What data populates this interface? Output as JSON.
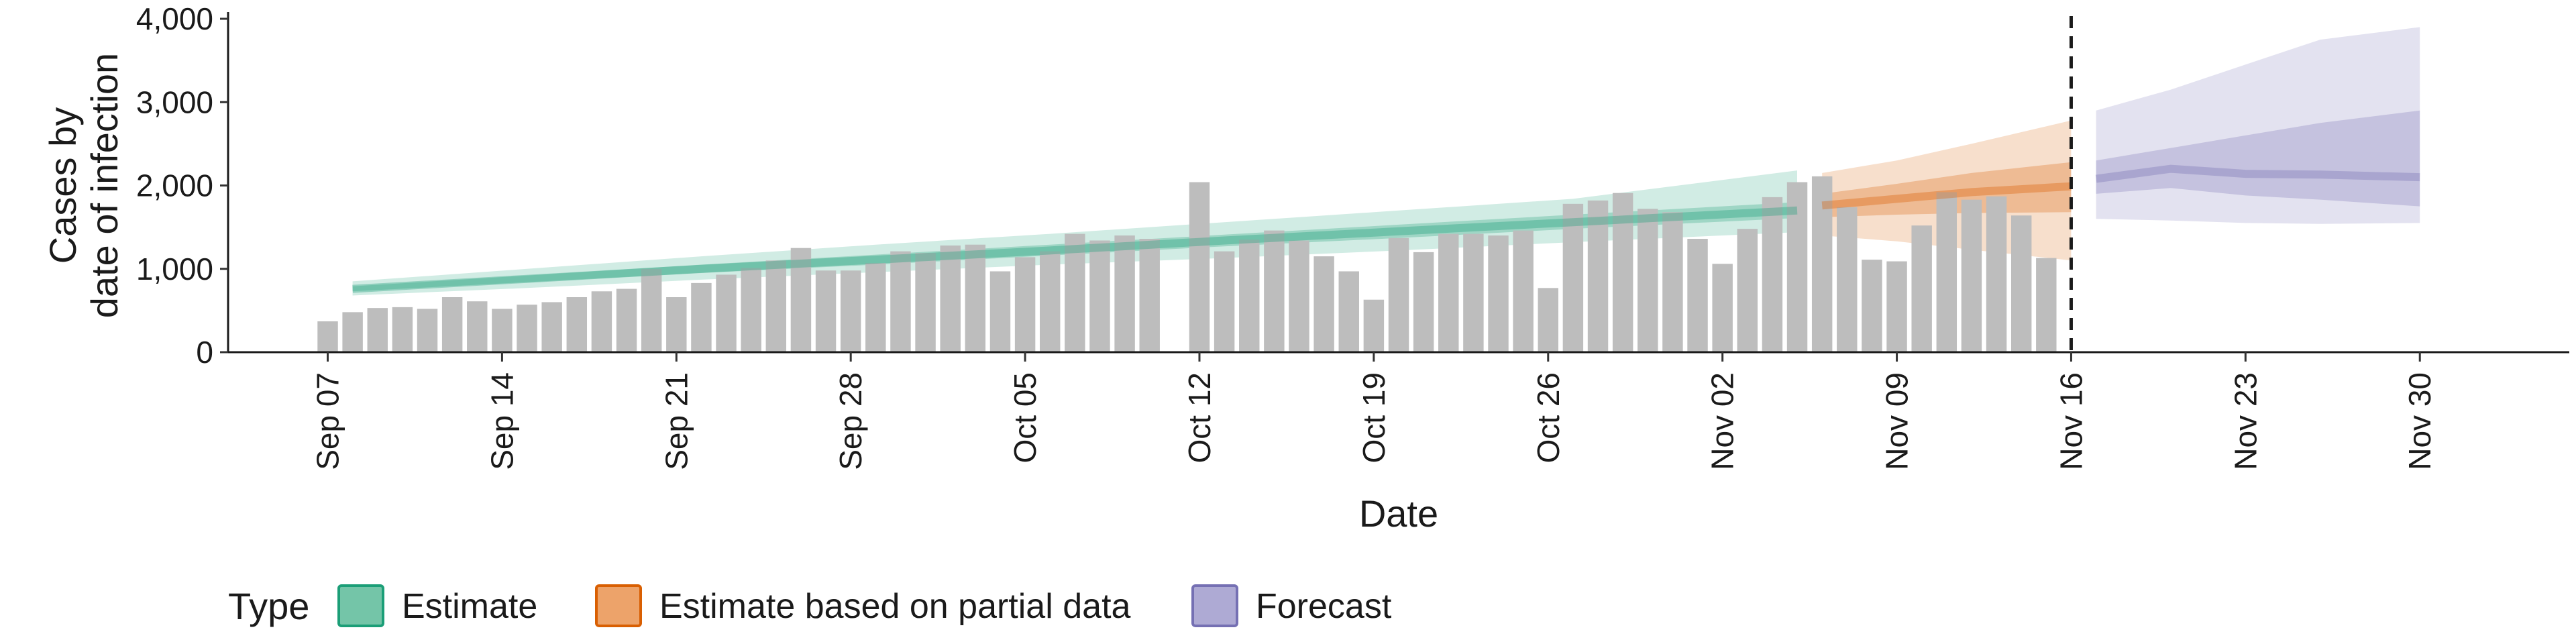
{
  "chart_data": {
    "type": "bar",
    "title": "",
    "xlabel": "Date",
    "ylabel": [
      "Cases by",
      "date of infection"
    ],
    "ylim": [
      0,
      4000
    ],
    "yticks": [
      0,
      1000,
      2000,
      3000,
      4000
    ],
    "ytick_labels": [
      "0",
      "1,000",
      "2,000",
      "3,000",
      "4,000"
    ],
    "xlim": [
      "2020-09-03",
      "2020-12-06"
    ],
    "xticks": [
      "2020-09-07",
      "2020-09-14",
      "2020-09-21",
      "2020-09-28",
      "2020-10-05",
      "2020-10-12",
      "2020-10-19",
      "2020-10-26",
      "2020-11-02",
      "2020-11-09",
      "2020-11-16",
      "2020-11-23",
      "2020-11-30"
    ],
    "xtick_labels": [
      "Sep 07",
      "Sep 14",
      "Sep 21",
      "Sep 28",
      "Oct 05",
      "Oct 12",
      "Oct 19",
      "Oct 26",
      "Nov 02",
      "Nov 09",
      "Nov 16",
      "Nov 23",
      "Nov 30"
    ],
    "grid": false,
    "vline": "2020-11-16",
    "legend": {
      "title": "Type",
      "position": "bottom",
      "entries": [
        {
          "label": "Estimate",
          "fill": "#74c5a8",
          "stroke": "#1b9e77"
        },
        {
          "label": "Estimate based on partial data",
          "fill": "#eda36a",
          "stroke": "#d95f02"
        },
        {
          "label": "Forecast",
          "fill": "#aeaad4",
          "stroke": "#7570b3"
        }
      ]
    },
    "colors": {
      "bar": "#bdbdbd",
      "estimate": "#1b9e77",
      "partial": "#d95f02",
      "forecast": "#7570b3",
      "vline": "#1a1a1a"
    },
    "bars": {
      "start": "2020-09-07",
      "values": [
        370,
        480,
        530,
        540,
        520,
        660,
        610,
        520,
        570,
        600,
        660,
        730,
        760,
        1000,
        660,
        830,
        930,
        1010,
        1100,
        1250,
        980,
        980,
        1070,
        1210,
        1190,
        1280,
        1290,
        970,
        1140,
        1210,
        1420,
        1340,
        1400,
        1360,
        null,
        2040,
        1210,
        1350,
        1460,
        1340,
        1150,
        970,
        630,
        1370,
        1200,
        1420,
        1420,
        1400,
        1460,
        770,
        1780,
        1820,
        1910,
        1720,
        1680,
        1360,
        1060,
        1480,
        1860,
        2040,
        2110,
        1740,
        1110,
        1090,
        1520,
        1920,
        1830,
        1870,
        1640,
        1130
      ]
    },
    "series": [
      {
        "type": "Estimate",
        "x": [
          "2020-09-08",
          "2020-09-15",
          "2020-09-22",
          "2020-09-29",
          "2020-10-06",
          "2020-10-13",
          "2020-10-20",
          "2020-10-27",
          "2020-11-05"
        ],
        "median": [
          760,
          880,
          1000,
          1110,
          1220,
          1340,
          1450,
          1560,
          1700
        ],
        "lower90": [
          680,
          770,
          870,
          960,
          1050,
          1130,
          1220,
          1320,
          1440
        ],
        "upper90": [
          850,
          1000,
          1150,
          1290,
          1420,
          1560,
          1700,
          1840,
          2180
        ],
        "lower50": [
          730,
          840,
          950,
          1050,
          1160,
          1270,
          1370,
          1480,
          1610
        ],
        "upper50": [
          790,
          920,
          1050,
          1170,
          1290,
          1410,
          1530,
          1650,
          1800
        ]
      },
      {
        "type": "Estimate based on partial data",
        "x": [
          "2020-11-06",
          "2020-11-09",
          "2020-11-12",
          "2020-11-16"
        ],
        "median": [
          1760,
          1840,
          1920,
          1990
        ],
        "lower90": [
          1400,
          1330,
          1230,
          1100
        ],
        "upper90": [
          2150,
          2300,
          2500,
          2780
        ],
        "lower50": [
          1620,
          1650,
          1670,
          1680
        ],
        "upper50": [
          1900,
          2020,
          2150,
          2280
        ]
      },
      {
        "type": "Forecast",
        "x": [
          "2020-11-17",
          "2020-11-20",
          "2020-11-23",
          "2020-11-26",
          "2020-11-30"
        ],
        "median": [
          2080,
          2200,
          2140,
          2130,
          2100
        ],
        "lower90": [
          1600,
          1580,
          1550,
          1540,
          1550
        ],
        "upper90": [
          2900,
          3150,
          3450,
          3750,
          3900
        ],
        "lower50": [
          1900,
          1970,
          1880,
          1830,
          1750
        ],
        "upper50": [
          2300,
          2450,
          2600,
          2750,
          2900
        ]
      }
    ]
  }
}
